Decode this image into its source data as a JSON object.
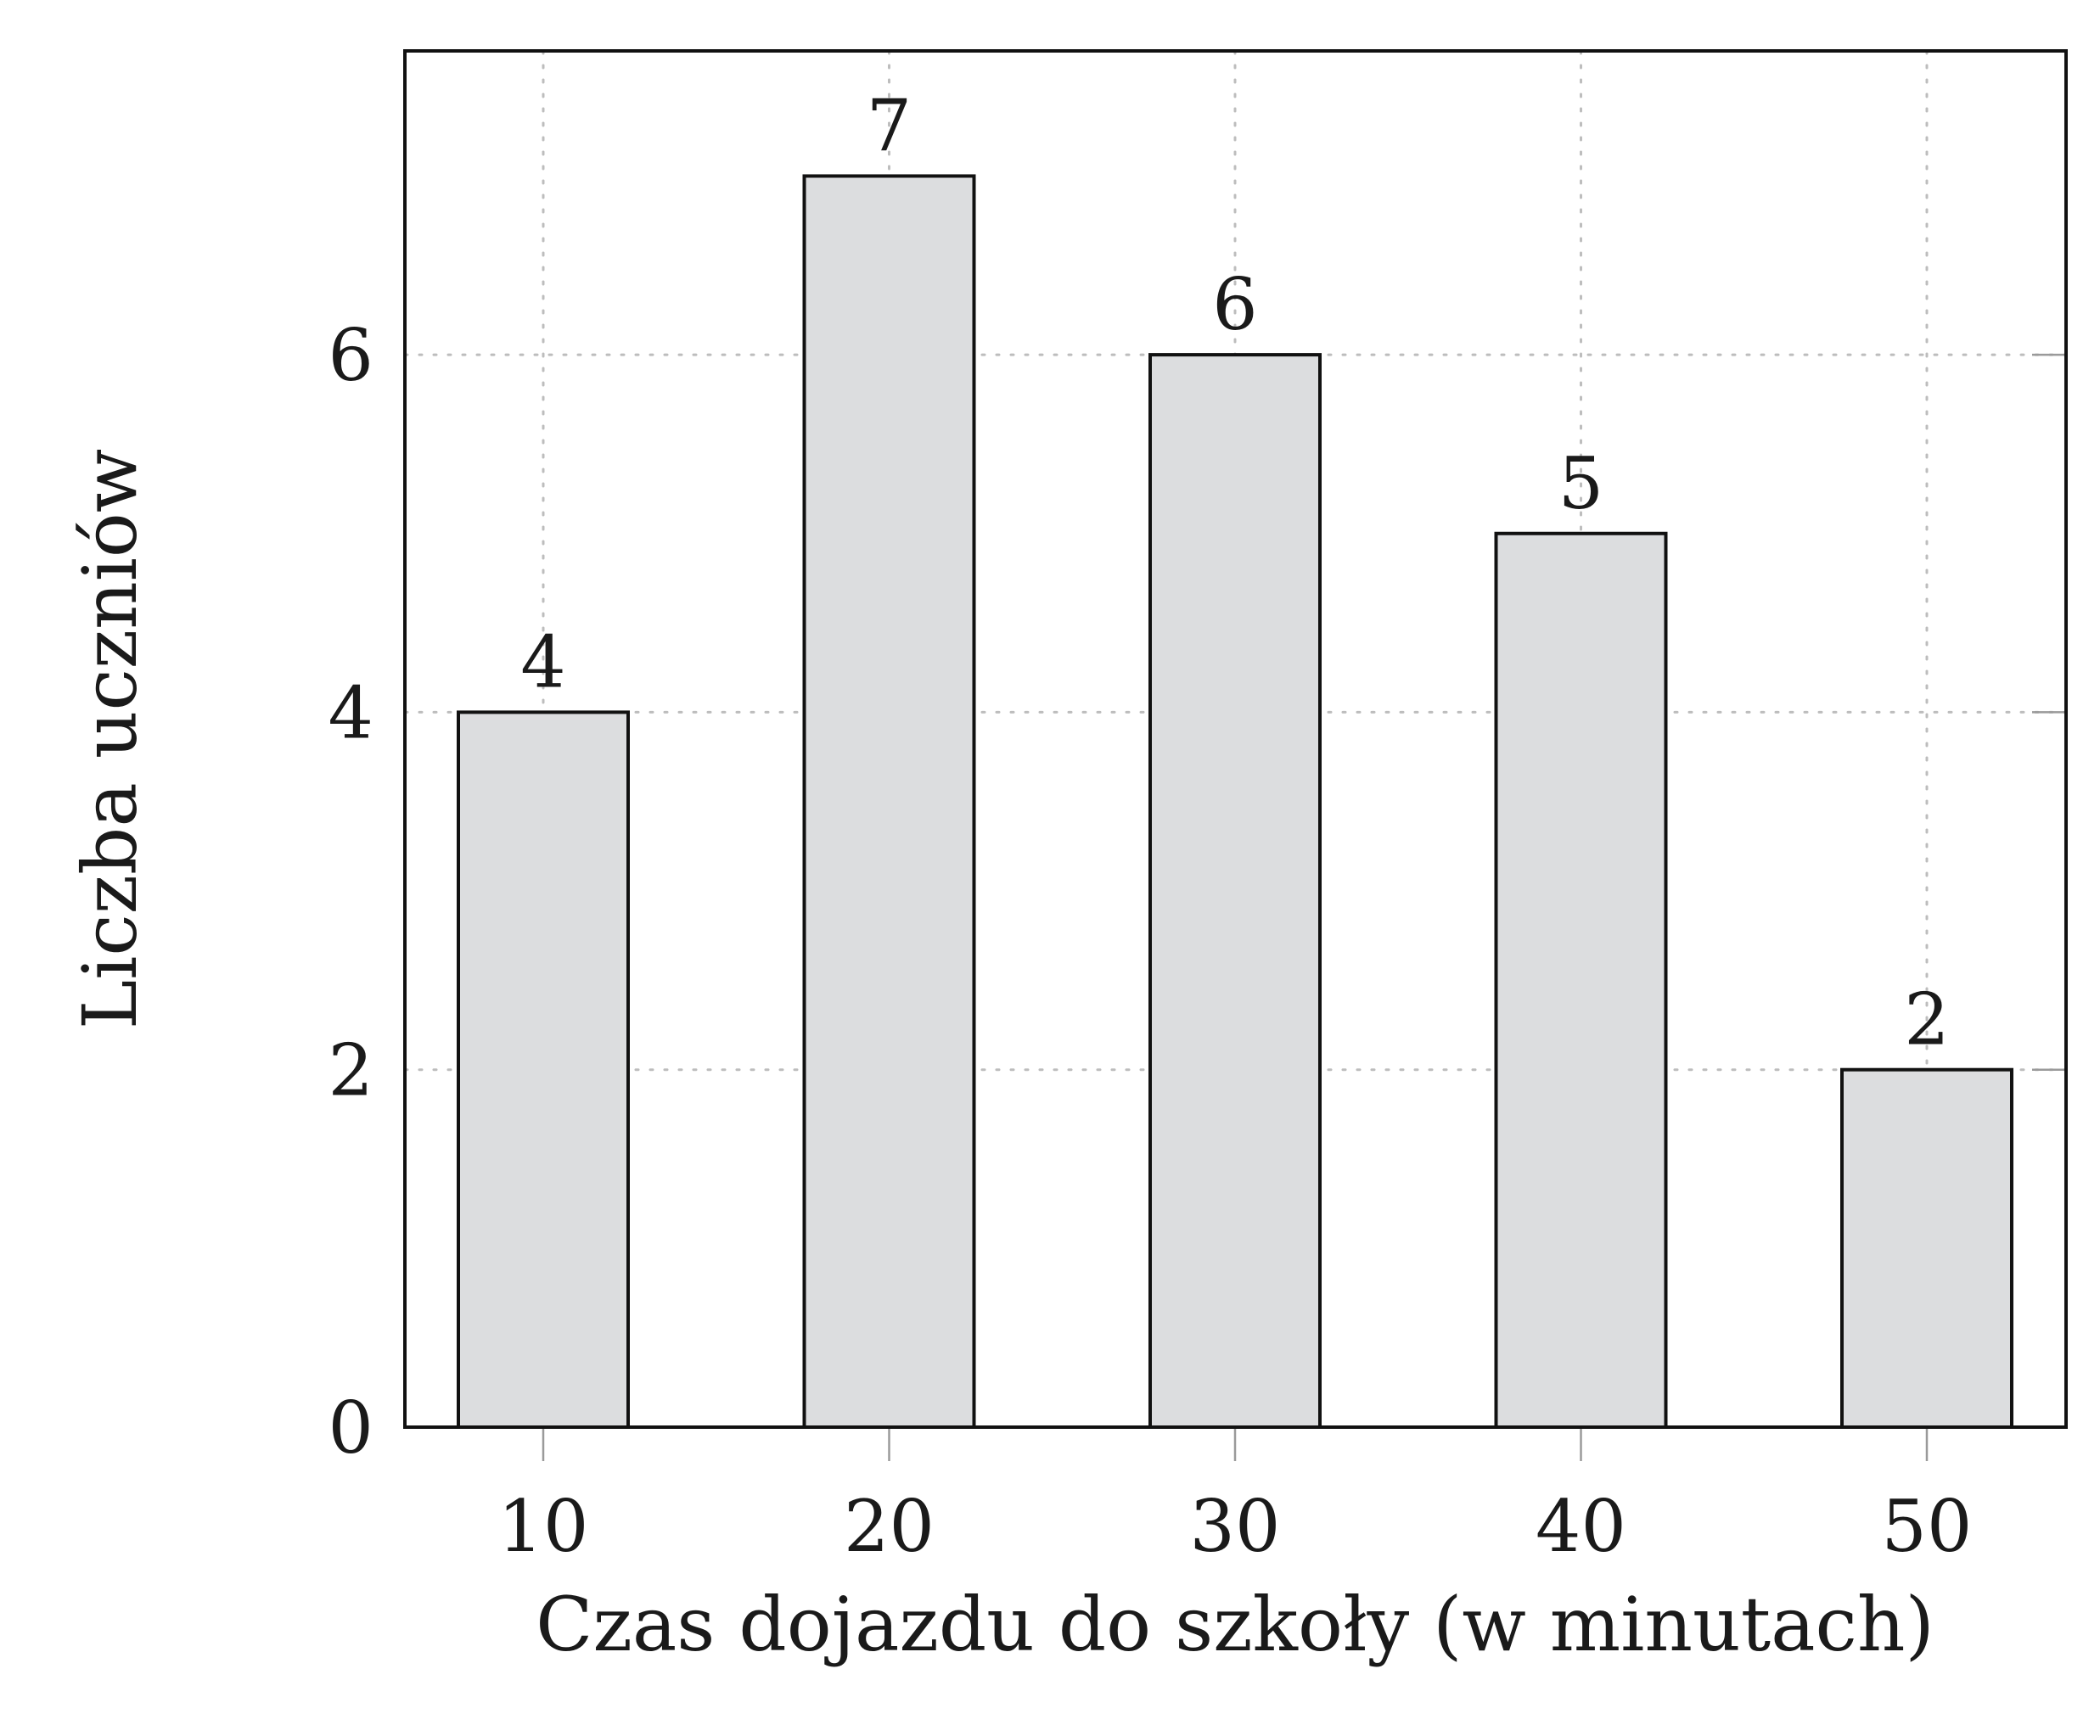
{
  "chart_data": {
    "type": "bar",
    "categories": [
      "10",
      "20",
      "30",
      "40",
      "50"
    ],
    "values": [
      4,
      7,
      6,
      5,
      2
    ],
    "data_labels": [
      "4",
      "7",
      "6",
      "5",
      "2"
    ],
    "xlabel": "Czas dojazdu do szkoły (w minutach)",
    "ylabel": "Liczba uczniów",
    "xticks": [
      "10",
      "20",
      "30",
      "40",
      "50"
    ],
    "yticks": [
      "0",
      "2",
      "4",
      "6"
    ],
    "ytick_values": [
      0,
      2,
      4,
      6
    ],
    "ylim": [
      0,
      7.7
    ],
    "grid": true,
    "colors": {
      "bar_fill": "#dcdddf",
      "bar_stroke": "#111111",
      "grid": "#bdbdbd"
    }
  }
}
